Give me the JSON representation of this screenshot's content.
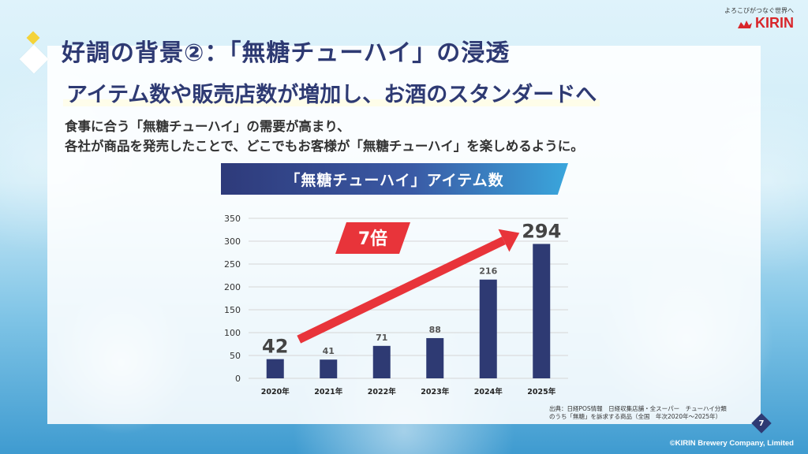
{
  "header": {
    "title": "好調の背景②：「無糖チューハイ」の浸透",
    "subtitle": "アイテム数や販売店数が増加し、お酒のスタンダードへ",
    "body_line1": "食事に合う「無糖チューハイ」の需要が高まり、",
    "body_line2": "各社が商品を発売したことで、どこでもお客様が「無糖チューハイ」を楽しめるように。"
  },
  "logo": {
    "tagline": "よろこびがつなぐ世界へ",
    "brand": "KIRIN"
  },
  "chart_data": {
    "type": "bar",
    "title": "「無糖チューハイ」アイテム数",
    "categories": [
      "2020年",
      "2021年",
      "2022年",
      "2023年",
      "2024年",
      "2025年"
    ],
    "values": [
      42,
      41,
      71,
      88,
      216,
      294
    ],
    "ylim": [
      0,
      350
    ],
    "yticks": [
      0,
      50,
      100,
      150,
      200,
      250,
      300,
      350
    ],
    "grid": true,
    "bar_color": "#2e3a73",
    "arrow_color": "#e8343a",
    "annotation": "7倍"
  },
  "footer": {
    "source_line1": "出典：日経POS情報　日経収集店舗・全スーパー　チューハイ分類",
    "source_line2": "のうち「無糖」を訴求する商品（全国　年次2020年～2025年）",
    "page_number": "7",
    "copyright": "©KIRIN Brewery Company, Limited"
  }
}
